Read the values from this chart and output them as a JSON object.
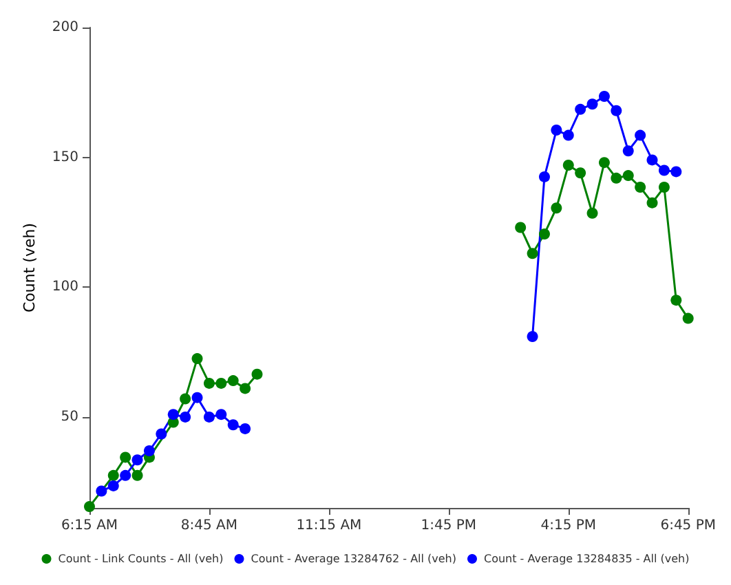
{
  "chart_data": {
    "type": "line",
    "ylabel": "Count (veh)",
    "series": [
      {
        "name": "Count - Link Counts - All (veh)",
        "color": "#008000",
        "x": [
          6.25,
          6.75,
          7,
          7.25,
          7.5,
          8,
          8.25,
          8.5,
          8.75,
          9,
          9.25,
          9.5,
          9.75,
          12,
          15.25,
          15.5,
          15.75,
          16,
          16.25,
          16.5,
          16.75,
          17,
          17.25,
          17.5,
          17.75,
          18,
          18.25,
          18.5,
          18.75
        ],
        "values": [
          15.5,
          27.5,
          34.5,
          27.5,
          34.5,
          48,
          57,
          72.5,
          63,
          63,
          64,
          61,
          66.5,
          null,
          123,
          113,
          120.5,
          130.5,
          147,
          144,
          128.5,
          148,
          142,
          143,
          138.5,
          132.5,
          138.5,
          95,
          88
        ]
      },
      {
        "name": "Count - Average 13284762 - All (veh)",
        "color": "#0000ff",
        "x": [
          6.5,
          6.75,
          7,
          7.25,
          7.5,
          7.75,
          8,
          8.25,
          8.5,
          8.75,
          9,
          9.25,
          9.5
        ],
        "values": [
          21.5,
          23.5,
          27.5,
          33.5,
          37,
          43.5,
          51,
          50,
          57.5,
          50,
          51,
          47,
          45.5
        ]
      },
      {
        "name": "Count - Average 13284835 - All (veh)",
        "color": "#0000ff",
        "x": [
          15.5,
          15.75,
          16,
          16.25,
          16.5,
          16.75,
          17,
          17.25,
          17.5,
          17.75,
          18,
          18.25,
          18.5
        ],
        "values": [
          81,
          142.5,
          160.5,
          158.5,
          168.5,
          170.5,
          173.5,
          168,
          152.5,
          158.5,
          149,
          145,
          144.5
        ]
      }
    ],
    "xlim": [
      6.25,
      18.75
    ],
    "xticks": [
      {
        "value": 6.25,
        "label": "6:15 AM"
      },
      {
        "value": 8.75,
        "label": "8:45 AM"
      },
      {
        "value": 11.25,
        "label": "11:15 AM"
      },
      {
        "value": 13.75,
        "label": "1:45 PM"
      },
      {
        "value": 16.25,
        "label": "4:15 PM"
      },
      {
        "value": 18.75,
        "label": "6:45 PM"
      }
    ],
    "ylim": [
      15,
      200
    ],
    "yticks": [
      50,
      100,
      150,
      200
    ],
    "grid": false,
    "legend": "bottom",
    "marker": "circle",
    "line_style": "solid"
  }
}
